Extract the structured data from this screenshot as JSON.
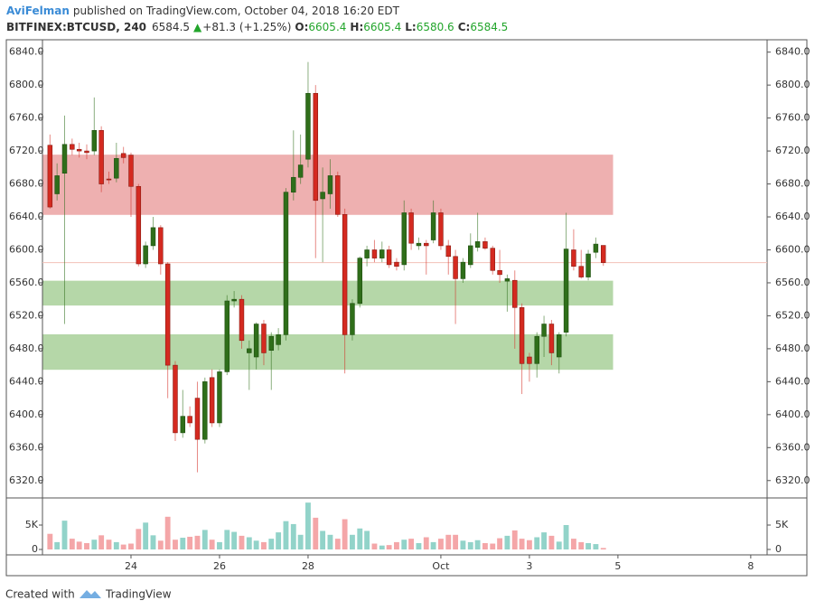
{
  "header": {
    "author": "AviFelman",
    "published": "published on TradingView.com, October 04, 2018 16:20 EDT",
    "symbol": "BITFINEX:BTCUSD, 240",
    "direction_symbol": "▲",
    "change": "+81.3 (+1.25%)",
    "open_label": "O:",
    "high_label": "H:",
    "low_label": "L:",
    "close_label": "C:"
  },
  "footer": {
    "created_with": "Created with",
    "brand": "TradingView"
  },
  "chart_data": {
    "type": "candlestick",
    "x": [
      22.17,
      22.33,
      22.5,
      22.67,
      22.83,
      23,
      23.17,
      23.33,
      23.5,
      23.67,
      23.83,
      24,
      24.17,
      24.33,
      24.5,
      24.67,
      24.83,
      25,
      25.17,
      25.33,
      25.5,
      25.67,
      25.83,
      26,
      26.17,
      26.33,
      26.5,
      26.67,
      26.83,
      27,
      27.17,
      27.33,
      27.5,
      27.67,
      27.83,
      28,
      28.17,
      28.33,
      28.5,
      28.67,
      28.83,
      29,
      29.17,
      29.33,
      29.5,
      29.67,
      29.83,
      30,
      30.17,
      30.33,
      30.5,
      30.67,
      30.83,
      31,
      31.17,
      31.33,
      31.5,
      31.67,
      31.83,
      32,
      32.17,
      32.33,
      32.5,
      32.67,
      32.83,
      33,
      33.17,
      33.33,
      33.5,
      33.67,
      33.83,
      34,
      34.17,
      34.33,
      34.5,
      34.67
    ],
    "open": [
      6727,
      6668,
      6693,
      6728,
      6722,
      6720,
      6720,
      6745,
      6686,
      6687,
      6717,
      6715,
      6677,
      6583,
      6605,
      6627,
      6583,
      6460,
      6378,
      6398,
      6420,
      6370,
      6445,
      6390,
      6452,
      6538,
      6540,
      6475,
      6470,
      6510,
      6478,
      6485,
      6497,
      6670,
      6688,
      6710,
      6790,
      6662,
      6668,
      6690,
      6643,
      6497,
      6535,
      6590,
      6600,
      6590,
      6600,
      6585,
      6582,
      6645,
      6605,
      6608,
      6612,
      6645,
      6605,
      6592,
      6565,
      6582,
      6603,
      6610,
      6602,
      6575,
      6562,
      6563,
      6530,
      6470,
      6462,
      6495,
      6510,
      6470,
      6500,
      6600,
      6580,
      6567,
      6597,
      6605.4
    ],
    "high": [
      6740,
      6705,
      6763,
      6735,
      6730,
      6728,
      6785,
      6750,
      6695,
      6730,
      6725,
      6718,
      6680,
      6610,
      6640,
      6630,
      6585,
      6465,
      6430,
      6410,
      6440,
      6445,
      6455,
      6455,
      6545,
      6550,
      6545,
      6490,
      6512,
      6515,
      6500,
      6505,
      6675,
      6745,
      6740,
      6828,
      6800,
      6700,
      6710,
      6695,
      6650,
      6540,
      6592,
      6605,
      6612,
      6610,
      6605,
      6590,
      6660,
      6650,
      6615,
      6612,
      6660,
      6650,
      6612,
      6600,
      6590,
      6620,
      6645,
      6615,
      6605,
      6600,
      6570,
      6575,
      6535,
      6475,
      6500,
      6520,
      6515,
      6500,
      6645,
      6625,
      6600,
      6600,
      6615,
      6605.4
    ],
    "low": [
      6650,
      6660,
      6510,
      6715,
      6712,
      6710,
      6715,
      6670,
      6680,
      6682,
      6705,
      6640,
      6580,
      6578,
      6600,
      6570,
      6420,
      6368,
      6372,
      6385,
      6330,
      6365,
      6385,
      6385,
      6448,
      6530,
      6480,
      6430,
      6455,
      6460,
      6430,
      6478,
      6490,
      6660,
      6680,
      6700,
      6590,
      6585,
      6650,
      6640,
      6450,
      6490,
      6530,
      6580,
      6585,
      6585,
      6578,
      6575,
      6575,
      6600,
      6600,
      6570,
      6608,
      6600,
      6570,
      6510,
      6560,
      6578,
      6598,
      6600,
      6570,
      6560,
      6525,
      6480,
      6425,
      6440,
      6445,
      6470,
      6460,
      6450,
      6495,
      6575,
      6565,
      6563,
      6590,
      6580.6
    ],
    "close": [
      6652,
      6690,
      6728,
      6722,
      6720,
      6718,
      6745,
      6680,
      6685,
      6711,
      6712,
      6677,
      6583,
      6605,
      6627,
      6583,
      6460,
      6378,
      6398,
      6390,
      6370,
      6440,
      6390,
      6452,
      6538,
      6540,
      6490,
      6480,
      6510,
      6475,
      6495,
      6497,
      6670,
      6688,
      6703,
      6790,
      6660,
      6670,
      6690,
      6643,
      6497,
      6535,
      6590,
      6600,
      6590,
      6600,
      6582,
      6580,
      6645,
      6608,
      6608,
      6605,
      6645,
      6605,
      6592,
      6565,
      6585,
      6605,
      6610,
      6602,
      6575,
      6570,
      6565,
      6530,
      6462,
      6462,
      6495,
      6510,
      6475,
      6497,
      6601,
      6580,
      6567,
      6595,
      6607,
      6584.5
    ],
    "volume": [
      3200,
      1500,
      5900,
      2200,
      1600,
      1300,
      2000,
      2900,
      2000,
      1500,
      1000,
      1200,
      4200,
      5500,
      2900,
      1800,
      6700,
      2000,
      2400,
      2600,
      2800,
      4000,
      2000,
      1500,
      4000,
      3600,
      2800,
      2500,
      1800,
      1500,
      2200,
      3500,
      5800,
      5200,
      3000,
      9600,
      6500,
      3800,
      3000,
      2200,
      6200,
      3000,
      4300,
      3800,
      1200,
      800,
      900,
      1500,
      2000,
      2200,
      1300,
      2500,
      1500,
      2200,
      3000,
      3000,
      1800,
      1500,
      1900,
      1300,
      1200,
      2300,
      2800,
      3900,
      2200,
      1900,
      2500,
      3500,
      2800,
      1600,
      5000,
      2200,
      1500,
      1300,
      1100,
      300
    ],
    "xlim": [
      22,
      38.37
    ],
    "xticks": [
      24,
      26,
      28,
      {
        "value": 31,
        "label": "Oct"
      },
      {
        "value": 33,
        "label": "3"
      },
      {
        "value": 35,
        "label": "5"
      },
      {
        "value": 38,
        "label": "8"
      }
    ],
    "ylim": [
      6300,
      6855
    ],
    "yticks": [
      {
        "value": 6320,
        "label": "6320.0"
      },
      {
        "value": 6360,
        "label": "6360.0"
      },
      {
        "value": 6400,
        "label": "6400.0"
      },
      {
        "value": 6440,
        "label": "6440.0"
      },
      {
        "value": 6480,
        "label": "6480.0"
      },
      {
        "value": 6520,
        "label": "6520.0"
      },
      {
        "value": 6560,
        "label": "6560.0"
      },
      {
        "value": 6600,
        "label": "6600.0"
      },
      {
        "value": 6640,
        "label": "6640.0"
      },
      {
        "value": 6680,
        "label": "6680.0"
      },
      {
        "value": 6720,
        "label": "6720.0"
      },
      {
        "value": 6760,
        "label": "6760.0"
      },
      {
        "value": 6800,
        "label": "6800.0"
      },
      {
        "value": 6840,
        "label": "6840.0"
      }
    ],
    "volume_ylim": [
      0,
      10000
    ],
    "volume_yticks": [
      0,
      {
        "value": 5000,
        "label": "5K"
      }
    ],
    "up_color": "#2f6e1a",
    "down_color": "#d42a20",
    "volume_up_color": "#92d3c9",
    "volume_down_color": "#f4a6a8",
    "price_line_color": "#f2c1b8",
    "zones": [
      {
        "low": 6643,
        "high": 6715,
        "xend": 34.88,
        "color": "#eeb0b0"
      },
      {
        "low": 6533,
        "high": 6562,
        "xend": 34.88,
        "color": "#b5d7a8"
      },
      {
        "low": 6455,
        "high": 6497,
        "xend": 34.88,
        "color": "#b5d7a8"
      }
    ]
  }
}
